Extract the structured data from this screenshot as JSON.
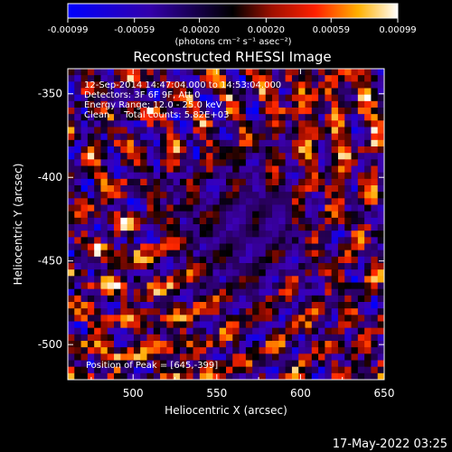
{
  "chart_data": {
    "type": "heatmap",
    "title": "Reconstructed RHESSI Image",
    "xlabel": "Heliocentric X (arcsec)",
    "ylabel": "Heliocentric Y (arcsec)",
    "xlim": [
      461,
      650
    ],
    "ylim": [
      -521,
      -335
    ],
    "x_ticks": [
      500,
      550,
      600,
      650
    ],
    "y_ticks": [
      -350,
      -400,
      -450,
      -500
    ],
    "annotations": [
      "12-Sep-2014 14:47:04.000 to 14:53:04.000",
      "Detectors: 3F 6F 9F, Att 0",
      "Energy Range: 12.0 - 25.0 keV",
      "Clean     Total counts: 5.82E+03"
    ],
    "peak_label": "Position of Peak = [645,-399]",
    "colorbar": {
      "range": [
        -0.00099,
        0.00099
      ],
      "tick_labels": [
        "-0.00099",
        "-0.00059",
        "-0.00020",
        "0.00020",
        "0.00059",
        "0.00099"
      ],
      "unit_label": "(photons cm⁻² s⁻¹ asec⁻²)"
    },
    "grid_cols": 48,
    "grid_rows": 48
  },
  "footer": {
    "timestamp": "17-May-2022 03:25"
  }
}
